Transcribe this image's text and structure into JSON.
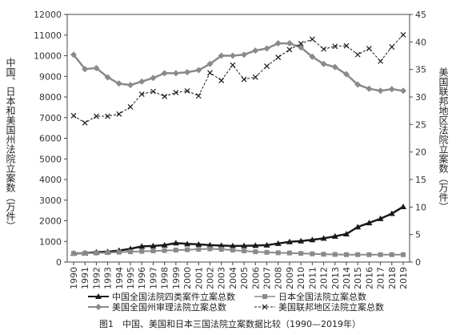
{
  "caption": "图1　中国、美国和日本三国法院立案数据比较（1990—2019年）",
  "chart_data": {
    "type": "line",
    "ylabel_left": "中国、日本和美国州法院立案数（万件）",
    "ylabel_right": "美国联邦地区法院立案数（万件）",
    "ylim_left": [
      0,
      12000
    ],
    "ylim_right": [
      0,
      45
    ],
    "yticks_left": [
      0,
      1000,
      2000,
      3000,
      4000,
      5000,
      6000,
      7000,
      8000,
      9000,
      10000,
      11000,
      12000
    ],
    "yticks_right": [
      0,
      5,
      10,
      15,
      20,
      25,
      30,
      35,
      40,
      45
    ],
    "x": [
      "1990",
      "1991",
      "1992",
      "1993",
      "1994",
      "1995",
      "1996",
      "1997",
      "1998",
      "1999",
      "2000",
      "2001",
      "2002",
      "2003",
      "2004",
      "2005",
      "2006",
      "2007",
      "2008",
      "2009",
      "2010",
      "2011",
      "2012",
      "2013",
      "2014",
      "2015",
      "2016",
      "2017",
      "2018",
      "2019"
    ],
    "legend": {
      "position": "bottom",
      "columns": 2
    },
    "series": [
      {
        "name": "中国全国法院四类案件立案总数",
        "axis": "left",
        "marker": "triangle",
        "color": "#1a1a1a",
        "line_width": 2.5,
        "values": [
          420,
          430,
          480,
          500,
          560,
          640,
          760,
          780,
          820,
          920,
          880,
          860,
          820,
          800,
          780,
          790,
          800,
          820,
          900,
          980,
          1020,
          1080,
          1150,
          1250,
          1360,
          1700,
          1900,
          2100,
          2350,
          2680
        ]
      },
      {
        "name": "日本全国法院立案总数",
        "axis": "left",
        "marker": "square",
        "color": "#8a8a8a",
        "line_width": 2,
        "values": [
          420,
          430,
          440,
          460,
          480,
          500,
          520,
          540,
          560,
          580,
          600,
          620,
          640,
          620,
          580,
          540,
          500,
          470,
          450,
          440,
          420,
          400,
          380,
          370,
          360,
          360,
          360,
          360,
          360,
          360
        ]
      },
      {
        "name": "美国全国州审理法院立案总数",
        "axis": "left",
        "marker": "diamond",
        "color": "#8a8a8a",
        "line_width": 2.5,
        "values": [
          10050,
          9350,
          9400,
          8950,
          8650,
          8580,
          8750,
          8920,
          9150,
          9150,
          9200,
          9300,
          9600,
          10000,
          10000,
          10050,
          10250,
          10350,
          10600,
          10600,
          10400,
          9950,
          9600,
          9450,
          9100,
          8600,
          8400,
          8300,
          8380,
          8300
        ]
      },
      {
        "name": "美国联邦地区法院立案总数",
        "axis": "right",
        "marker": "x",
        "color": "#1a1a1a",
        "line_width": 1,
        "dashed": true,
        "values": [
          26.6,
          25.3,
          26.5,
          26.5,
          26.9,
          28.2,
          30.5,
          31.0,
          30.1,
          30.8,
          31.1,
          30.2,
          34.4,
          33.0,
          35.8,
          33.2,
          33.6,
          35.6,
          37.2,
          38.6,
          39.7,
          40.5,
          38.7,
          39.2,
          39.3,
          37.7,
          38.8,
          36.5,
          39.1,
          41.3
        ]
      }
    ]
  }
}
